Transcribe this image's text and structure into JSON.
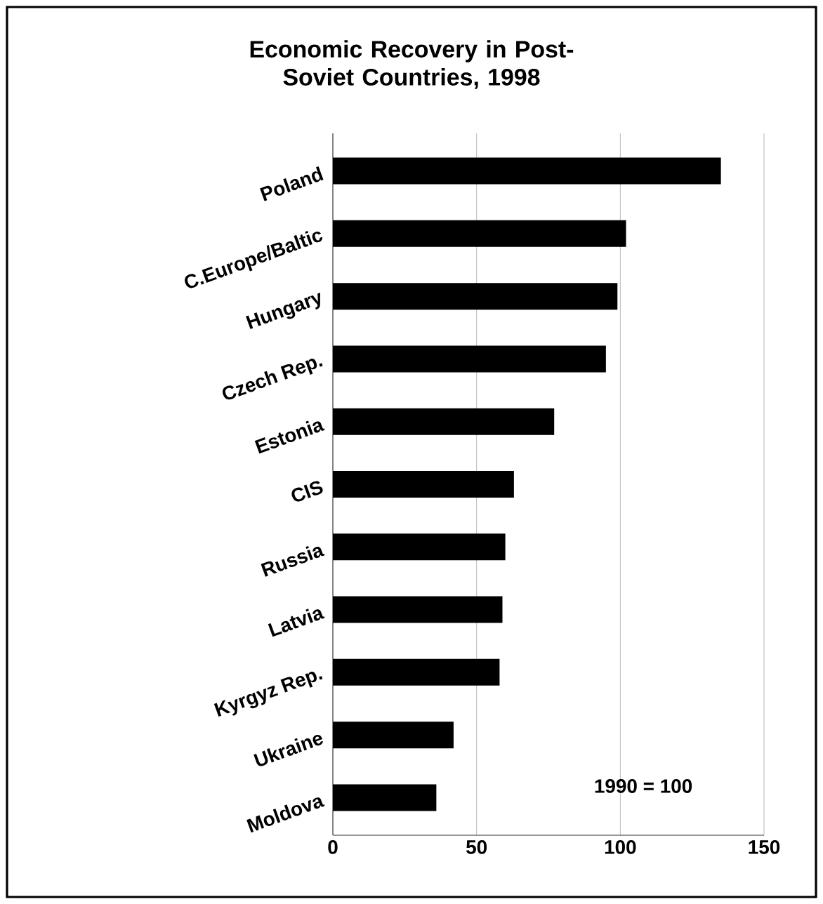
{
  "chart_data": {
    "type": "bar",
    "orientation": "horizontal",
    "title": "Economic Recovery in Post-Soviet Countries, 1998",
    "categories": [
      "Poland",
      "C.Europe/Baltic",
      "Hungary",
      "Czech Rep.",
      "Estonia",
      "CIS",
      "Russia",
      "Latvia",
      "Kyrgyz Rep.",
      "Ukraine",
      "Moldova"
    ],
    "values": [
      135,
      102,
      99,
      95,
      77,
      63,
      60,
      59,
      58,
      42,
      36
    ],
    "color": "#000000",
    "xlim": [
      0,
      150
    ],
    "xticks": [
      0,
      50,
      100,
      150
    ],
    "grid": "x",
    "annotations": [
      "1990 = 100"
    ]
  }
}
